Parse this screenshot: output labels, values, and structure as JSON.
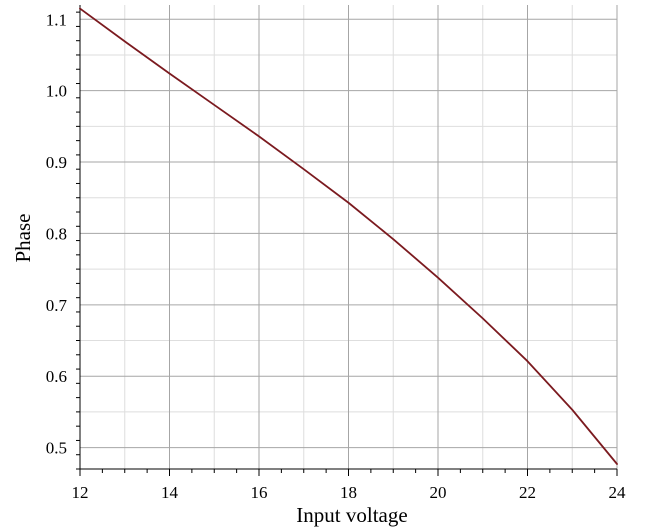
{
  "chart_data": {
    "type": "line",
    "title": "",
    "xlabel": "Input voltage",
    "ylabel": "Phase",
    "xlim": [
      12,
      24
    ],
    "ylim": [
      0.47,
      1.12
    ],
    "x_ticks": [
      12,
      14,
      16,
      18,
      20,
      22,
      24
    ],
    "x_tick_labels": [
      "12",
      "14",
      "16",
      "18",
      "20",
      "22",
      "24"
    ],
    "y_ticks": [
      0.5,
      0.6,
      0.7,
      0.8,
      0.9,
      1.0,
      1.1
    ],
    "y_tick_labels": [
      "0.5",
      "0.6",
      "0.7",
      "0.8",
      "0.9",
      "1.0",
      "1.1"
    ],
    "grid": true,
    "legend": "none",
    "series": [
      {
        "color": "#7b1a1f",
        "x": [
          12,
          13,
          14,
          15,
          16,
          17,
          18,
          19,
          20,
          21,
          22,
          23,
          24
        ],
        "y": [
          1.115,
          1.069,
          1.024,
          0.98,
          0.936,
          0.89,
          0.843,
          0.792,
          0.738,
          0.681,
          0.621,
          0.553,
          0.477
        ]
      }
    ]
  }
}
